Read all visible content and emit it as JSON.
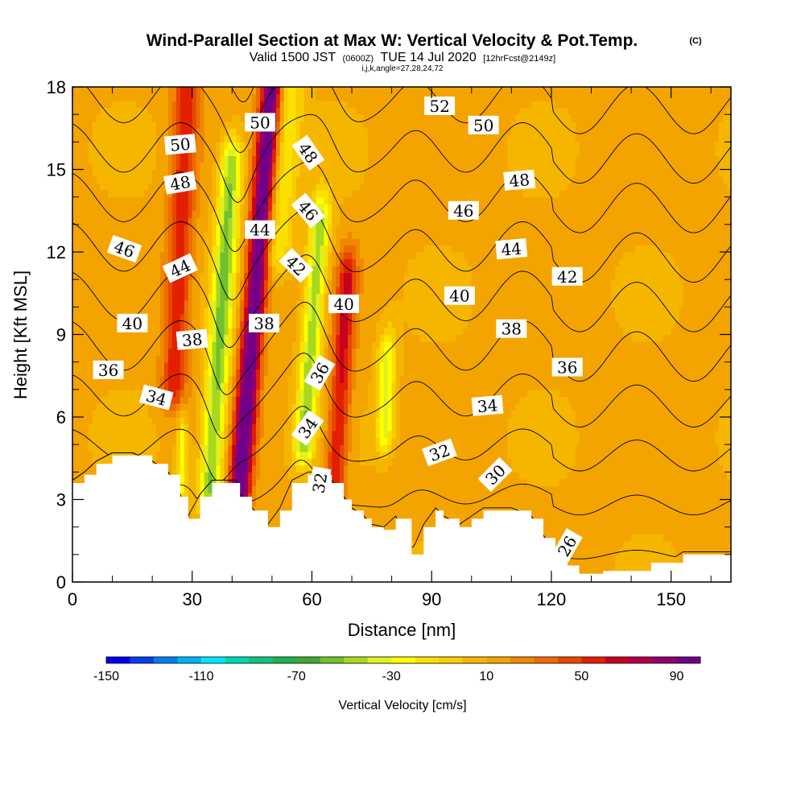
{
  "header": {
    "title": "Wind-Parallel Section at Max W: Vertical Velocity & Pot.Temp.",
    "title_mark": "(C)",
    "subtitle_main": "Valid 1500 JST",
    "subtitle_z": "(0600Z)",
    "subtitle_date": "TUE 14 Jul 2020",
    "subtitle_fcst": "[12hrFcst@2149z]",
    "subtitle_ijk": "i,j,k,angle=27,28,24,72"
  },
  "chart_data": {
    "type": "heatmap",
    "xlabel": "Distance [nm]",
    "ylabel": "Height [Kft MSL]",
    "xlim": [
      0,
      165
    ],
    "ylim": [
      0,
      18
    ],
    "x_ticks": [
      "0",
      "30",
      "60",
      "90",
      "120",
      "150"
    ],
    "y_ticks": [
      "0",
      "3",
      "6",
      "9",
      "12",
      "15",
      "18"
    ],
    "colorbar": {
      "title": "Vertical Velocity [cm/s]",
      "tick_labels": [
        "-150",
        "-110",
        "-70",
        "-30",
        "10",
        "50",
        "90"
      ],
      "bins": [
        -150,
        -140,
        -130,
        -120,
        -110,
        -100,
        -90,
        -80,
        -70,
        -60,
        -50,
        -40,
        -30,
        -20,
        -10,
        0,
        10,
        20,
        30,
        40,
        50,
        60,
        70,
        80,
        90,
        100
      ],
      "colors": [
        "#0000ee",
        "#0040f0",
        "#0080f0",
        "#00b4f4",
        "#00e6ff",
        "#00d8b0",
        "#10c480",
        "#20b050",
        "#40a830",
        "#70c030",
        "#a8d820",
        "#e0f020",
        "#ffff00",
        "#fbe000",
        "#f8ce00",
        "#f6b600",
        "#f4a400",
        "#f08800",
        "#ec6c00",
        "#e84800",
        "#e22000",
        "#c80020",
        "#b00048",
        "#900070",
        "#700088"
      ]
    },
    "vertical_velocity_features": [
      {
        "x": 45,
        "ymin": 3.3,
        "ymax": 18,
        "tilt": 0.55,
        "amplitude": 95,
        "width": 2.7
      },
      {
        "x": 37,
        "ymin": 3.3,
        "ymax": 15,
        "tilt": 0.45,
        "amplitude": -65,
        "width": 2.8
      },
      {
        "x": 26,
        "ymin": 7,
        "ymax": 18,
        "tilt": 0.3,
        "amplitude": 45,
        "width": 3.2
      },
      {
        "x": 60,
        "ymin": 5,
        "ymax": 13,
        "tilt": 0.5,
        "amplitude": -60,
        "width": 2.5
      },
      {
        "x": 68,
        "ymin": 3.5,
        "ymax": 11,
        "tilt": 0.4,
        "amplitude": 50,
        "width": 2.6
      },
      {
        "x": 79,
        "ymin": 5.5,
        "ymax": 8,
        "tilt": 0.2,
        "amplitude": -45,
        "width": 2.2
      },
      {
        "x": 50,
        "ymin": 12,
        "ymax": 18,
        "tilt": 0.5,
        "amplitude": -30,
        "width": 3.5
      },
      {
        "x": 28,
        "ymin": 3.5,
        "ymax": 5,
        "tilt": 0.1,
        "amplitude": -40,
        "width": 1.2
      }
    ],
    "terrain_top_kft": [
      [
        0,
        3.6
      ],
      [
        3,
        3.9
      ],
      [
        6,
        4.3
      ],
      [
        10,
        4.6
      ],
      [
        15,
        4.6
      ],
      [
        20,
        4.3
      ],
      [
        24,
        3.9
      ],
      [
        27,
        3.1
      ],
      [
        29,
        2.3
      ],
      [
        32,
        3.1
      ],
      [
        35,
        3.6
      ],
      [
        41,
        3.6
      ],
      [
        42,
        3.1
      ],
      [
        45,
        2.6
      ],
      [
        49,
        2.0
      ],
      [
        52,
        2.6
      ],
      [
        55,
        3.6
      ],
      [
        59,
        3.9
      ],
      [
        62,
        3.9
      ],
      [
        65,
        3.6
      ],
      [
        68,
        3.0
      ],
      [
        70,
        2.6
      ],
      [
        73,
        2.3
      ],
      [
        75,
        2.0
      ],
      [
        78,
        1.9
      ],
      [
        81,
        2.3
      ],
      [
        85,
        1.0
      ],
      [
        88,
        2.0
      ],
      [
        91,
        2.6
      ],
      [
        93,
        2.3
      ],
      [
        97,
        2.0
      ],
      [
        100,
        2.3
      ],
      [
        103,
        2.6
      ],
      [
        110,
        2.6
      ],
      [
        115,
        2.3
      ],
      [
        118,
        1.6
      ],
      [
        121,
        1.0
      ],
      [
        124,
        0.6
      ],
      [
        127,
        0.3
      ],
      [
        133,
        0.4
      ],
      [
        140,
        0.4
      ],
      [
        145,
        0.7
      ],
      [
        150,
        0.7
      ],
      [
        153,
        1.0
      ],
      [
        160,
        1.0
      ],
      [
        165,
        1.0
      ]
    ],
    "theta_contour_levels": [
      26,
      28,
      30,
      32,
      34,
      36,
      38,
      40,
      42,
      44,
      46,
      48,
      50,
      52,
      54
    ],
    "theta_contour_labels": [
      {
        "text": "50",
        "x": 27,
        "y": 15.9,
        "angle": -5
      },
      {
        "text": "48",
        "x": 27,
        "y": 14.5,
        "angle": -10
      },
      {
        "text": "44",
        "x": 27,
        "y": 11.4,
        "angle": -25
      },
      {
        "text": "46",
        "x": 13,
        "y": 12.1,
        "angle": 20
      },
      {
        "text": "40",
        "x": 15,
        "y": 9.4,
        "angle": 0
      },
      {
        "text": "38",
        "x": 30,
        "y": 8.8,
        "angle": -5
      },
      {
        "text": "36",
        "x": 9,
        "y": 7.7,
        "angle": 0
      },
      {
        "text": "34",
        "x": 21,
        "y": 6.7,
        "angle": 15
      },
      {
        "text": "50",
        "x": 47,
        "y": 16.7,
        "angle": 0
      },
      {
        "text": "44",
        "x": 47,
        "y": 12.8,
        "angle": 0
      },
      {
        "text": "38",
        "x": 48,
        "y": 9.4,
        "angle": 0
      },
      {
        "text": "48",
        "x": 59,
        "y": 15.6,
        "angle": 55
      },
      {
        "text": "46",
        "x": 59,
        "y": 13.5,
        "angle": 50
      },
      {
        "text": "42",
        "x": 56,
        "y": 11.5,
        "angle": 45
      },
      {
        "text": "40",
        "x": 68,
        "y": 10.1,
        "angle": 0
      },
      {
        "text": "36",
        "x": 62,
        "y": 7.6,
        "angle": -60
      },
      {
        "text": "34",
        "x": 59,
        "y": 5.6,
        "angle": -55
      },
      {
        "text": "32",
        "x": 62,
        "y": 3.6,
        "angle": -80
      },
      {
        "text": "52",
        "x": 92,
        "y": 17.3,
        "angle": 0
      },
      {
        "text": "50",
        "x": 103,
        "y": 16.6,
        "angle": 0
      },
      {
        "text": "48",
        "x": 112,
        "y": 14.6,
        "angle": -5
      },
      {
        "text": "46",
        "x": 98,
        "y": 13.5,
        "angle": 0
      },
      {
        "text": "44",
        "x": 110,
        "y": 12.1,
        "angle": -5
      },
      {
        "text": "42",
        "x": 124,
        "y": 11.1,
        "angle": 0
      },
      {
        "text": "40",
        "x": 97,
        "y": 10.4,
        "angle": 0
      },
      {
        "text": "38",
        "x": 110,
        "y": 9.2,
        "angle": 0
      },
      {
        "text": "36",
        "x": 124,
        "y": 7.8,
        "angle": 0
      },
      {
        "text": "34",
        "x": 104,
        "y": 6.4,
        "angle": -5
      },
      {
        "text": "32",
        "x": 92,
        "y": 4.7,
        "angle": -20
      },
      {
        "text": "30",
        "x": 106,
        "y": 3.9,
        "angle": -45
      },
      {
        "text": "26",
        "x": 124,
        "y": 1.3,
        "angle": -60
      }
    ]
  }
}
